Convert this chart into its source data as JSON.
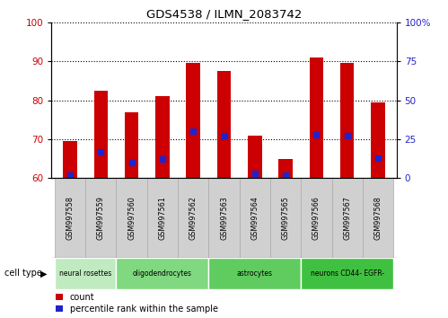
{
  "title": "GDS4538 / ILMN_2083742",
  "samples": [
    "GSM997558",
    "GSM997559",
    "GSM997560",
    "GSM997561",
    "GSM997562",
    "GSM997563",
    "GSM997564",
    "GSM997565",
    "GSM997566",
    "GSM997567",
    "GSM997568"
  ],
  "count_values": [
    69.5,
    82.5,
    77.0,
    81.0,
    89.5,
    87.5,
    71.0,
    65.0,
    91.0,
    89.5,
    79.5
  ],
  "percentile_values": [
    2,
    17,
    10,
    12,
    30,
    27,
    3,
    2,
    28,
    27,
    13
  ],
  "ylim_left": [
    60,
    100
  ],
  "ylim_right": [
    0,
    100
  ],
  "yticks_left": [
    60,
    70,
    80,
    90,
    100
  ],
  "ytick_labels_right": [
    "0",
    "25",
    "50",
    "75",
    "100%"
  ],
  "ytick_vals_right": [
    0,
    25,
    50,
    75,
    100
  ],
  "bar_color": "#cc0000",
  "marker_color": "#2222cc",
  "bar_bottom": 60,
  "bar_width": 0.45,
  "cell_types": [
    {
      "label": "neural rosettes",
      "start": 0,
      "end": 2,
      "color": "#c0eac0"
    },
    {
      "label": "oligodendrocytes",
      "start": 2,
      "end": 5,
      "color": "#80d880"
    },
    {
      "label": "astrocytes",
      "start": 5,
      "end": 8,
      "color": "#60cc60"
    },
    {
      "label": "neurons CD44- EGFR-",
      "start": 8,
      "end": 11,
      "color": "#40c040"
    }
  ],
  "legend_count_label": "count",
  "legend_pct_label": "percentile rank within the sample",
  "background_color": "#ffffff",
  "tick_label_color_left": "#cc0000",
  "tick_label_color_right": "#2222cc",
  "grid_color": "#000000",
  "cell_type_label": "cell type",
  "sample_box_color": "#d0d0d0",
  "sample_box_edge": "#aaaaaa"
}
